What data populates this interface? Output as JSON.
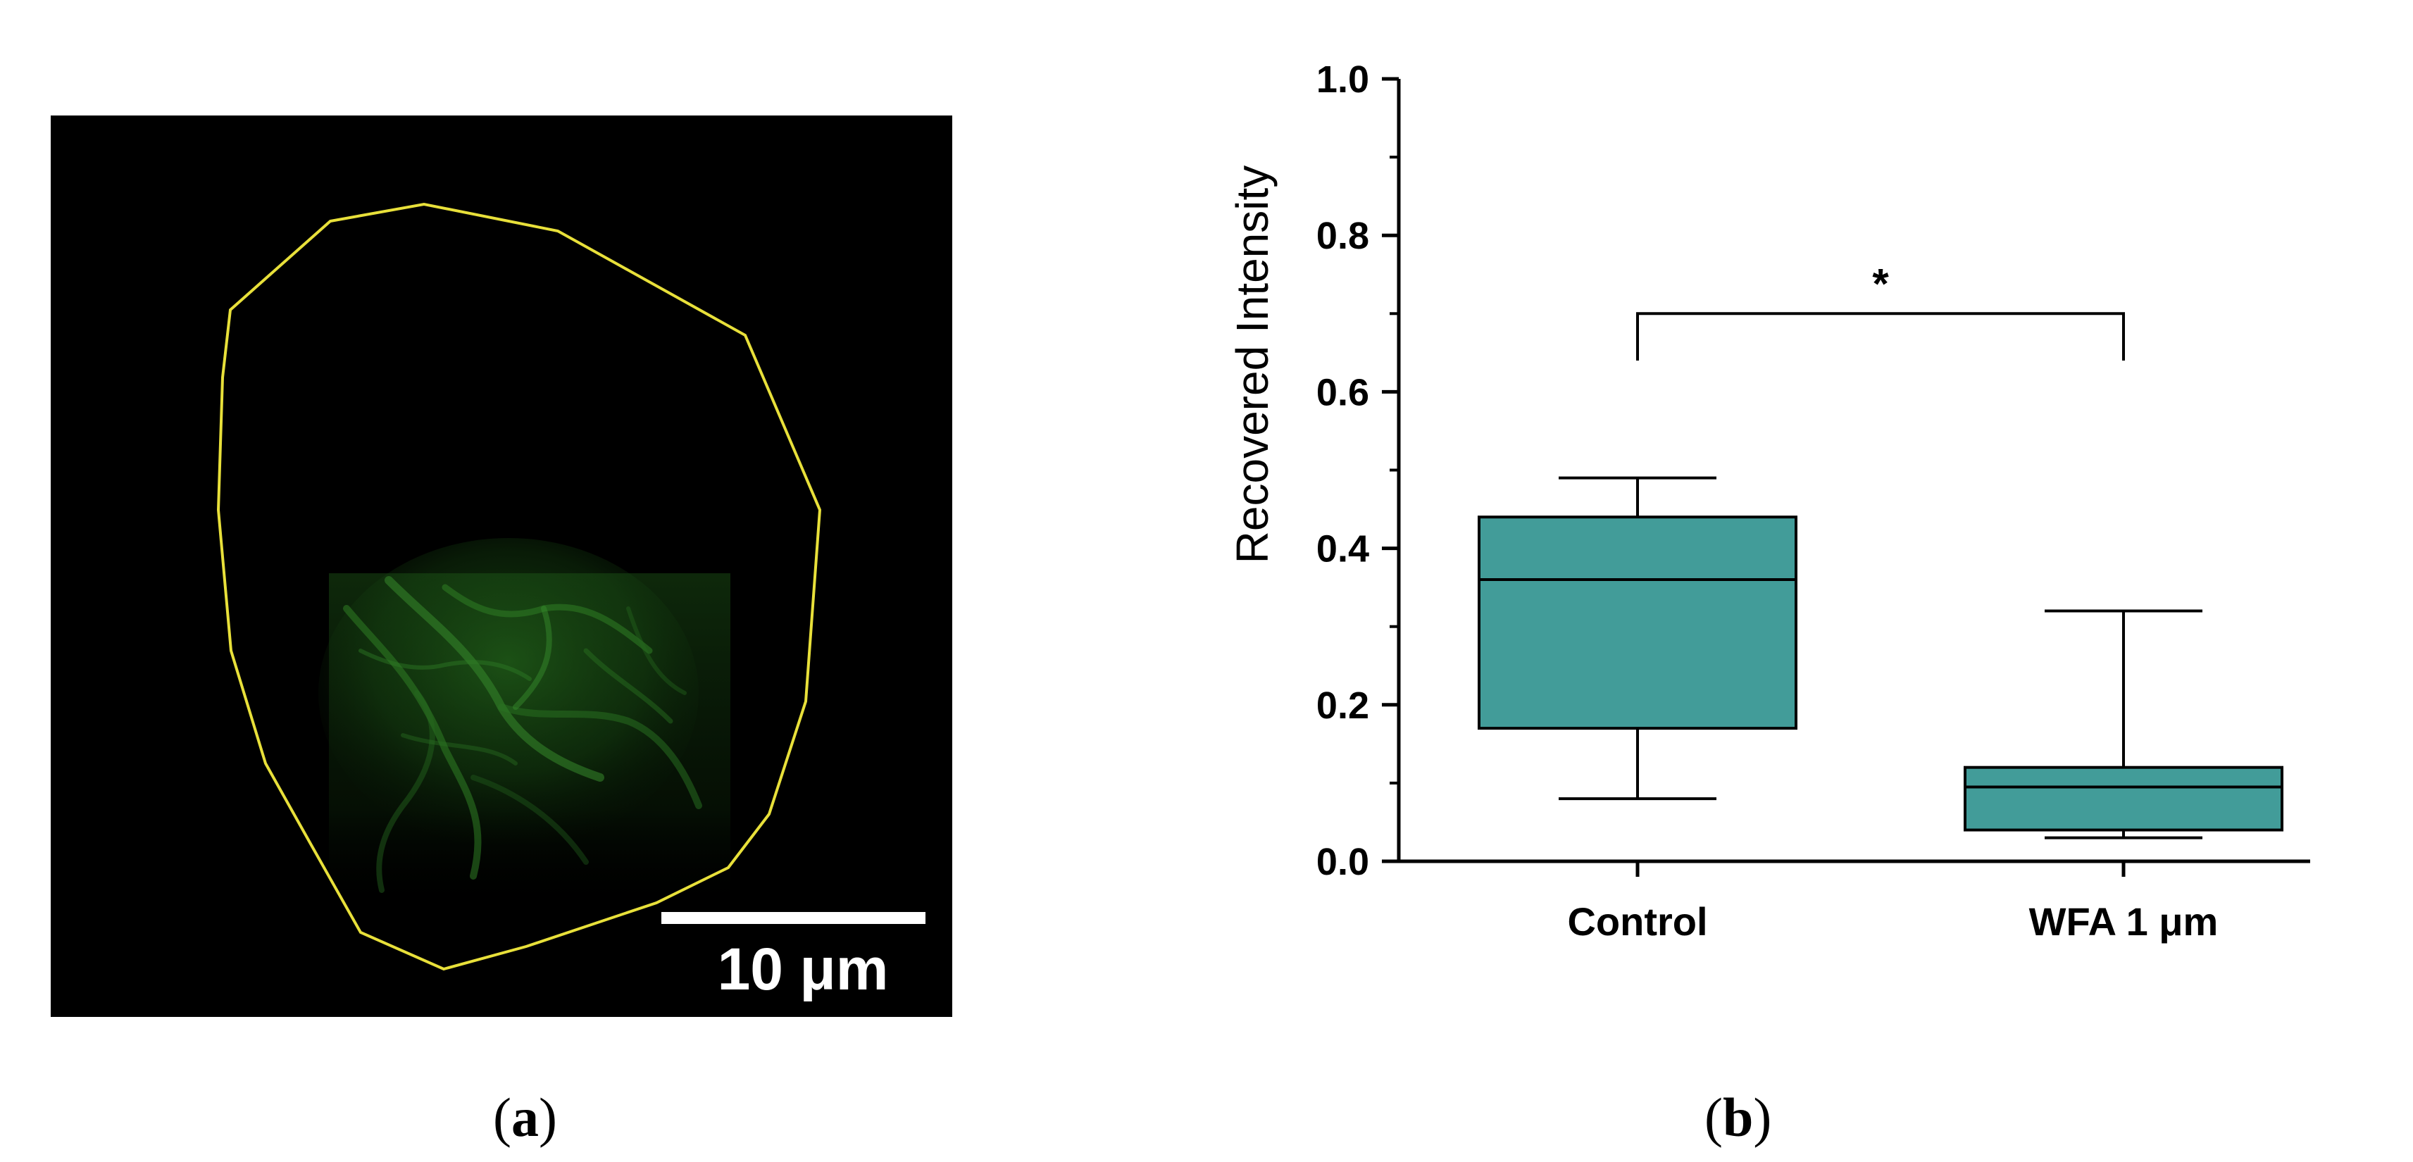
{
  "panel_a": {
    "label_open": "(",
    "label_letter": "a",
    "label_close": ")",
    "scale_bar_label": "10 μm",
    "outline_color": "#e8e03a",
    "signal_color": "#1f5a18"
  },
  "panel_b": {
    "label_open": "(",
    "label_letter": "b",
    "label_close": ")"
  },
  "chart_data": {
    "type": "box",
    "ylabel": "Recovered Intensity",
    "xlabel": "",
    "ylim": [
      0.0,
      1.0
    ],
    "yticks": [
      "0.0",
      "0.2",
      "0.4",
      "0.6",
      "0.8",
      "1.0"
    ],
    "yminor_step": 0.1,
    "box_color": "#429c99",
    "categories": [
      "Control",
      "WFA 1 μm"
    ],
    "boxes": [
      {
        "category": "Control",
        "whisker_low": 0.08,
        "q1": 0.17,
        "median": 0.36,
        "q3": 0.44,
        "whisker_high": 0.49
      },
      {
        "category": "WFA 1 μm",
        "whisker_low": 0.03,
        "q1": 0.04,
        "median": 0.095,
        "q3": 0.12,
        "whisker_high": 0.32
      }
    ],
    "significance": {
      "from": "Control",
      "to": "WFA 1 μm",
      "y": 0.7,
      "drop_to": 0.64,
      "label": "*"
    },
    "grid": false,
    "legend": "none"
  }
}
